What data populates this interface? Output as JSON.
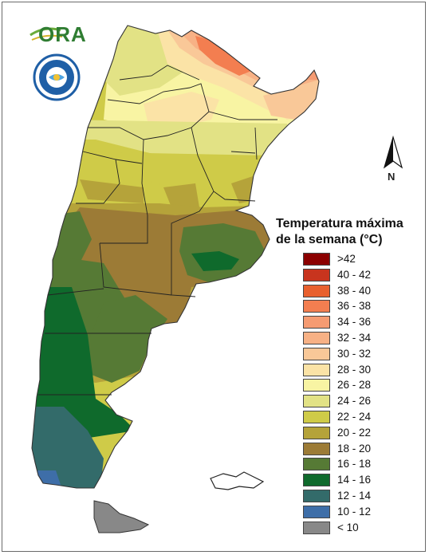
{
  "logo": {
    "ora_text": "ORA",
    "seal_name": "smn-seal"
  },
  "north_arrow": {
    "label": "N"
  },
  "legend": {
    "title_line1": "Temperatura máxima",
    "title_line2": "de la semana (°C)",
    "items": [
      {
        "label": ">42",
        "color": "#8b0000"
      },
      {
        "label": "40 - 42",
        "color": "#c8341e"
      },
      {
        "label": "38 - 40",
        "color": "#e8602e"
      },
      {
        "label": "36 - 38",
        "color": "#f37e50"
      },
      {
        "label": "34 - 36",
        "color": "#f59b72"
      },
      {
        "label": "32 - 34",
        "color": "#f7b185"
      },
      {
        "label": "30 - 32",
        "color": "#f9c898"
      },
      {
        "label": "28 - 30",
        "color": "#fbe3a6"
      },
      {
        "label": "26 - 28",
        "color": "#f8f4a3"
      },
      {
        "label": "24 - 26",
        "color": "#e2e285"
      },
      {
        "label": "22 - 24",
        "color": "#cfcb48"
      },
      {
        "label": "20 - 22",
        "color": "#b5a33a"
      },
      {
        "label": "18 - 20",
        "color": "#9c7b36"
      },
      {
        "label": "16 - 18",
        "color": "#567a35"
      },
      {
        "label": "14 - 16",
        "color": "#0f6a2c"
      },
      {
        "label": "12 - 14",
        "color": "#336b6a"
      },
      {
        "label": "10 - 12",
        "color": "#3e6ea8"
      },
      {
        "label": "< 10",
        "color": "#888888"
      }
    ]
  }
}
